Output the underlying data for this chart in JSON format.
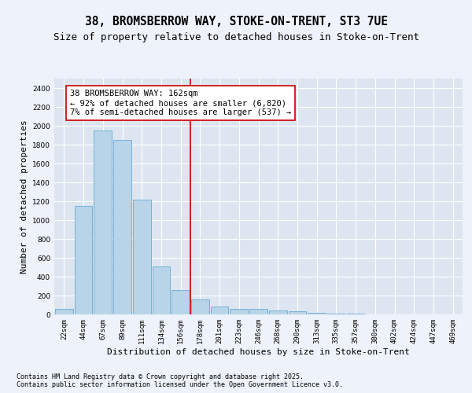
{
  "title1": "38, BROMSBERROW WAY, STOKE-ON-TRENT, ST3 7UE",
  "title2": "Size of property relative to detached houses in Stoke-on-Trent",
  "xlabel": "Distribution of detached houses by size in Stoke-on-Trent",
  "ylabel": "Number of detached properties",
  "categories": [
    "22sqm",
    "44sqm",
    "67sqm",
    "89sqm",
    "111sqm",
    "134sqm",
    "156sqm",
    "178sqm",
    "201sqm",
    "223sqm",
    "246sqm",
    "268sqm",
    "290sqm",
    "313sqm",
    "335sqm",
    "357sqm",
    "380sqm",
    "402sqm",
    "424sqm",
    "447sqm",
    "469sqm"
  ],
  "values": [
    60,
    1150,
    1950,
    1850,
    1220,
    510,
    260,
    155,
    80,
    60,
    55,
    45,
    30,
    20,
    10,
    5,
    3,
    2,
    1,
    1,
    1
  ],
  "bar_color": "#b8d4e8",
  "bar_edge_color": "#6aaad4",
  "vline_x_index": 6.5,
  "vline_color": "#cc0000",
  "annotation_text": "38 BROMSBERROW WAY: 162sqm\n← 92% of detached houses are smaller (6,820)\n7% of semi-detached houses are larger (537) →",
  "annotation_box_color": "#ffffff",
  "annotation_box_edge": "#cc0000",
  "ylim": [
    0,
    2500
  ],
  "yticks": [
    0,
    200,
    400,
    600,
    800,
    1000,
    1200,
    1400,
    1600,
    1800,
    2000,
    2200,
    2400
  ],
  "footer1": "Contains HM Land Registry data © Crown copyright and database right 2025.",
  "footer2": "Contains public sector information licensed under the Open Government Licence v3.0.",
  "fig_bg_color": "#eef2fa",
  "plot_bg_color": "#dde6f0",
  "title1_fontsize": 10.5,
  "title2_fontsize": 9,
  "xlabel_fontsize": 8,
  "ylabel_fontsize": 8,
  "tick_fontsize": 6.5,
  "annotation_fontsize": 7.5,
  "footer_fontsize": 6
}
